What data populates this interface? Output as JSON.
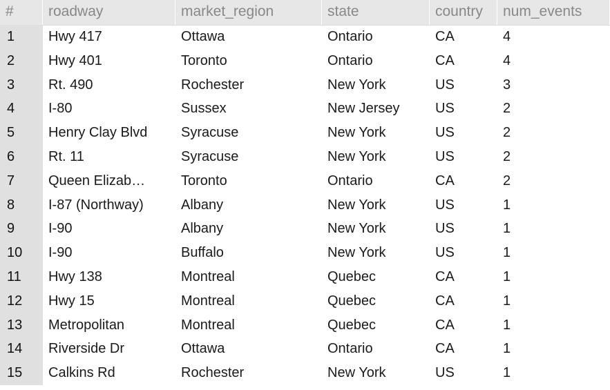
{
  "columns": {
    "rownum": "#",
    "roadway": "roadway",
    "market_region": "market_region",
    "state": "state",
    "country": "country",
    "num_events": "num_events"
  },
  "rows": [
    {
      "n": "1",
      "roadway": "Hwy 417",
      "market_region": "Ottawa",
      "state": "Ontario",
      "country": "CA",
      "num_events": "4"
    },
    {
      "n": "2",
      "roadway": "Hwy 401",
      "market_region": "Toronto",
      "state": "Ontario",
      "country": "CA",
      "num_events": "4"
    },
    {
      "n": "3",
      "roadway": "Rt. 490",
      "market_region": "Rochester",
      "state": "New York",
      "country": "US",
      "num_events": "3"
    },
    {
      "n": "4",
      "roadway": "I-80",
      "market_region": "Sussex",
      "state": "New Jersey",
      "country": "US",
      "num_events": "2"
    },
    {
      "n": "5",
      "roadway": "Henry Clay Blvd",
      "market_region": "Syracuse",
      "state": "New York",
      "country": "US",
      "num_events": "2"
    },
    {
      "n": "6",
      "roadway": "Rt. 11",
      "market_region": "Syracuse",
      "state": "New York",
      "country": "US",
      "num_events": "2"
    },
    {
      "n": "7",
      "roadway": "Queen Elizab…",
      "market_region": "Toronto",
      "state": "Ontario",
      "country": "CA",
      "num_events": "2"
    },
    {
      "n": "8",
      "roadway": "I-87 (Northway)",
      "market_region": "Albany",
      "state": "New York",
      "country": "US",
      "num_events": "1"
    },
    {
      "n": "9",
      "roadway": "I-90",
      "market_region": "Albany",
      "state": "New York",
      "country": "US",
      "num_events": "1"
    },
    {
      "n": "10",
      "roadway": "I-90",
      "market_region": "Buffalo",
      "state": "New York",
      "country": "US",
      "num_events": "1"
    },
    {
      "n": "11",
      "roadway": "Hwy 138",
      "market_region": "Montreal",
      "state": "Quebec",
      "country": "CA",
      "num_events": "1"
    },
    {
      "n": "12",
      "roadway": "Hwy 15",
      "market_region": "Montreal",
      "state": "Quebec",
      "country": "CA",
      "num_events": "1"
    },
    {
      "n": "13",
      "roadway": "Metropolitan",
      "market_region": "Montreal",
      "state": "Quebec",
      "country": "CA",
      "num_events": "1"
    },
    {
      "n": "14",
      "roadway": "Riverside Dr",
      "market_region": "Ottawa",
      "state": "Ontario",
      "country": "CA",
      "num_events": "1"
    },
    {
      "n": "15",
      "roadway": "Calkins Rd",
      "market_region": "Rochester",
      "state": "New York",
      "country": "US",
      "num_events": "1"
    }
  ]
}
